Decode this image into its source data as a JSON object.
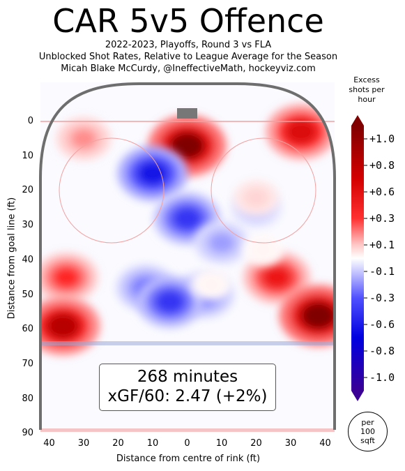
{
  "chart_data": {
    "type": "heatmap",
    "title": "CAR 5v5 Offence",
    "subtitle_lines": [
      "2022-2023, Playoffs, Round 3 vs FLA",
      "Unblocked Shot Rates, Relative to League Average for the Season",
      "Micah Blake McCurdy, @IneffectiveMath, hockeyviz.com"
    ],
    "xlabel": "Distance from centre of rink (ft)",
    "ylabel": "Distance from goal line (ft)",
    "xlim": [
      -42.5,
      42.5
    ],
    "ylim": [
      -11,
      90
    ],
    "x_ticks": [
      "40",
      "30",
      "20",
      "10",
      "0",
      "10",
      "20",
      "30",
      "40"
    ],
    "y_ticks": [
      "0",
      "10",
      "20",
      "30",
      "40",
      "50",
      "60",
      "70",
      "80",
      "90"
    ],
    "colorbar": {
      "title": "Excess shots per hour",
      "tick_labels": [
        "+1.0",
        "+0.8",
        "+0.6",
        "+0.3",
        "+0.1",
        "-0.1",
        "-0.3",
        "-0.6",
        "-0.8",
        "-1.0"
      ],
      "range": [
        -1.0,
        1.0
      ],
      "low_color": "#3b0095",
      "mid_color": "#ffffff",
      "high_color": "#800000"
    },
    "area_unit_lines": [
      "per",
      "100",
      "sqft"
    ],
    "annotation": {
      "minutes": "268 minutes",
      "xgf": "xGF/60: 2.47 (+2%)"
    },
    "regions": [
      {
        "x": 0,
        "y": 7,
        "value": 1.0
      },
      {
        "x": -10,
        "y": 15,
        "value": -0.8
      },
      {
        "x": 0,
        "y": 28,
        "value": -0.7
      },
      {
        "x": 20,
        "y": 25,
        "value": -0.3
      },
      {
        "x": 20,
        "y": 22,
        "value": 0.2
      },
      {
        "x": 33,
        "y": 3,
        "value": 0.8
      },
      {
        "x": -30,
        "y": 5,
        "value": 0.4
      },
      {
        "x": -35,
        "y": 45,
        "value": 0.6
      },
      {
        "x": -36,
        "y": 59,
        "value": 0.9
      },
      {
        "x": 26,
        "y": 45,
        "value": 0.7
      },
      {
        "x": 38,
        "y": 56,
        "value": 1.0
      },
      {
        "x": -12,
        "y": 48,
        "value": -0.5
      },
      {
        "x": 5,
        "y": 50,
        "value": -0.5
      },
      {
        "x": -5,
        "y": 52,
        "value": -0.7
      },
      {
        "x": 10,
        "y": 35,
        "value": -0.4
      },
      {
        "x": 7,
        "y": 47,
        "value": 0.05
      },
      {
        "x": 22,
        "y": 37,
        "value": 0.05
      }
    ]
  }
}
